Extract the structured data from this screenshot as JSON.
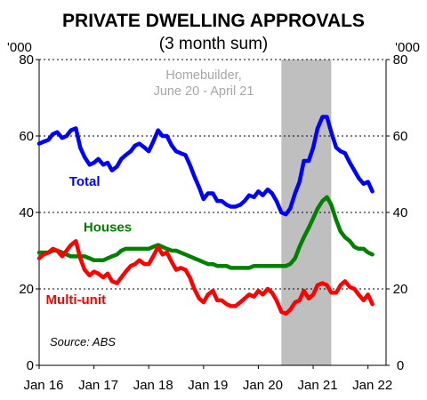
{
  "chart_data": {
    "type": "line",
    "title": "PRIVATE DWELLING APPROVALS",
    "subtitle": "(3 month sum)",
    "y_unit_left": "'000",
    "y_unit_right": "'000",
    "ylim": [
      0,
      80
    ],
    "yticks": [
      0,
      20,
      40,
      60,
      80
    ],
    "xlim": [
      2016.0,
      2022.33
    ],
    "xticks": [
      {
        "label": "Jan 16",
        "x": 2016.0
      },
      {
        "label": "Jan 17",
        "x": 2017.0
      },
      {
        "label": "Jan 18",
        "x": 2018.0
      },
      {
        "label": "Jan 19",
        "x": 2019.0
      },
      {
        "label": "Jan 20",
        "x": 2020.0
      },
      {
        "label": "Jan 21",
        "x": 2021.0
      },
      {
        "label": "Jan 22",
        "x": 2022.0
      }
    ],
    "shaded_region": {
      "x_start": 2020.42,
      "x_end": 2021.33,
      "label_line1": "Homebuilder,",
      "label_line2": "June 20 - April 21",
      "color": "#bfbfbf"
    },
    "source": "Source: ABS",
    "series": [
      {
        "name": "Total",
        "color": "#0000ff",
        "points": [
          [
            2016.0,
            58
          ],
          [
            2016.08,
            58.5
          ],
          [
            2016.17,
            59
          ],
          [
            2016.25,
            60.5
          ],
          [
            2016.33,
            61
          ],
          [
            2016.42,
            59.5
          ],
          [
            2016.5,
            60
          ],
          [
            2016.58,
            61.5
          ],
          [
            2016.67,
            62
          ],
          [
            2016.75,
            57
          ],
          [
            2016.83,
            54.5
          ],
          [
            2016.92,
            52.5
          ],
          [
            2017.0,
            53
          ],
          [
            2017.08,
            54
          ],
          [
            2017.17,
            52.5
          ],
          [
            2017.25,
            53
          ],
          [
            2017.33,
            51
          ],
          [
            2017.42,
            52
          ],
          [
            2017.5,
            54
          ],
          [
            2017.58,
            55
          ],
          [
            2017.67,
            56
          ],
          [
            2017.75,
            57.5
          ],
          [
            2017.83,
            58
          ],
          [
            2017.92,
            57
          ],
          [
            2018.0,
            56
          ],
          [
            2018.08,
            58.5
          ],
          [
            2018.17,
            61.5
          ],
          [
            2018.25,
            60
          ],
          [
            2018.33,
            60
          ],
          [
            2018.42,
            57.5
          ],
          [
            2018.5,
            56
          ],
          [
            2018.58,
            55.5
          ],
          [
            2018.67,
            55
          ],
          [
            2018.75,
            52.5
          ],
          [
            2018.83,
            49.5
          ],
          [
            2018.92,
            46.5
          ],
          [
            2019.0,
            43.5
          ],
          [
            2019.08,
            45
          ],
          [
            2019.17,
            45
          ],
          [
            2019.25,
            43
          ],
          [
            2019.33,
            43
          ],
          [
            2019.42,
            42
          ],
          [
            2019.5,
            41.5
          ],
          [
            2019.58,
            41.5
          ],
          [
            2019.67,
            42
          ],
          [
            2019.75,
            43
          ],
          [
            2019.83,
            44.5
          ],
          [
            2019.92,
            44
          ],
          [
            2020.0,
            45.5
          ],
          [
            2020.08,
            44.5
          ],
          [
            2020.17,
            46
          ],
          [
            2020.25,
            45
          ],
          [
            2020.33,
            43
          ],
          [
            2020.42,
            40
          ],
          [
            2020.5,
            39.5
          ],
          [
            2020.58,
            41
          ],
          [
            2020.67,
            45
          ],
          [
            2020.75,
            48
          ],
          [
            2020.83,
            53.5
          ],
          [
            2020.92,
            53.5
          ],
          [
            2021.0,
            57
          ],
          [
            2021.08,
            62
          ],
          [
            2021.17,
            65
          ],
          [
            2021.25,
            65
          ],
          [
            2021.33,
            61
          ],
          [
            2021.42,
            57
          ],
          [
            2021.5,
            56
          ],
          [
            2021.58,
            55.5
          ],
          [
            2021.67,
            53
          ],
          [
            2021.75,
            51
          ],
          [
            2021.83,
            49
          ],
          [
            2021.92,
            47.5
          ],
          [
            2022.0,
            48
          ],
          [
            2022.08,
            45.5
          ]
        ]
      },
      {
        "name": "Houses",
        "color": "#008000",
        "points": [
          [
            2016.0,
            29.5
          ],
          [
            2016.08,
            29.5
          ],
          [
            2016.17,
            29.5
          ],
          [
            2016.25,
            30
          ],
          [
            2016.33,
            30
          ],
          [
            2016.42,
            29.5
          ],
          [
            2016.5,
            29
          ],
          [
            2016.58,
            28.5
          ],
          [
            2016.67,
            28.5
          ],
          [
            2016.75,
            28.5
          ],
          [
            2016.83,
            28.5
          ],
          [
            2016.92,
            28
          ],
          [
            2017.0,
            27.5
          ],
          [
            2017.08,
            27.5
          ],
          [
            2017.17,
            27.5
          ],
          [
            2017.25,
            28
          ],
          [
            2017.33,
            28.5
          ],
          [
            2017.42,
            29
          ],
          [
            2017.5,
            30
          ],
          [
            2017.58,
            30.5
          ],
          [
            2017.67,
            30.5
          ],
          [
            2017.75,
            30.5
          ],
          [
            2017.83,
            30.5
          ],
          [
            2017.92,
            30.5
          ],
          [
            2018.0,
            30.5
          ],
          [
            2018.08,
            31
          ],
          [
            2018.17,
            31.5
          ],
          [
            2018.25,
            31
          ],
          [
            2018.33,
            30.5
          ],
          [
            2018.42,
            30
          ],
          [
            2018.5,
            30
          ],
          [
            2018.58,
            29.5
          ],
          [
            2018.67,
            29
          ],
          [
            2018.75,
            28.5
          ],
          [
            2018.83,
            28
          ],
          [
            2018.92,
            27.5
          ],
          [
            2019.0,
            27
          ],
          [
            2019.08,
            26.5
          ],
          [
            2019.17,
            26.5
          ],
          [
            2019.25,
            26
          ],
          [
            2019.33,
            26
          ],
          [
            2019.42,
            26
          ],
          [
            2019.5,
            25.5
          ],
          [
            2019.58,
            25.5
          ],
          [
            2019.67,
            25.5
          ],
          [
            2019.75,
            25.5
          ],
          [
            2019.83,
            25.5
          ],
          [
            2019.92,
            26
          ],
          [
            2020.0,
            26
          ],
          [
            2020.08,
            26
          ],
          [
            2020.17,
            26
          ],
          [
            2020.25,
            26
          ],
          [
            2020.33,
            26
          ],
          [
            2020.42,
            26
          ],
          [
            2020.5,
            26
          ],
          [
            2020.58,
            26.5
          ],
          [
            2020.67,
            28
          ],
          [
            2020.75,
            31
          ],
          [
            2020.83,
            33.5
          ],
          [
            2020.92,
            36
          ],
          [
            2021.0,
            38.5
          ],
          [
            2021.08,
            41
          ],
          [
            2021.17,
            43
          ],
          [
            2021.25,
            44
          ],
          [
            2021.33,
            42
          ],
          [
            2021.42,
            38
          ],
          [
            2021.5,
            35
          ],
          [
            2021.58,
            33.5
          ],
          [
            2021.67,
            32.5
          ],
          [
            2021.75,
            31
          ],
          [
            2021.83,
            30.5
          ],
          [
            2021.92,
            30.5
          ],
          [
            2022.0,
            29.5
          ],
          [
            2022.08,
            29
          ]
        ]
      },
      {
        "name": "Multi-unit",
        "color": "#ff0000",
        "points": [
          [
            2016.0,
            28
          ],
          [
            2016.08,
            29
          ],
          [
            2016.17,
            29.5
          ],
          [
            2016.25,
            30.5
          ],
          [
            2016.33,
            30
          ],
          [
            2016.42,
            28.5
          ],
          [
            2016.5,
            30
          ],
          [
            2016.58,
            31.5
          ],
          [
            2016.67,
            32.5
          ],
          [
            2016.75,
            28
          ],
          [
            2016.83,
            25
          ],
          [
            2016.92,
            23.5
          ],
          [
            2017.0,
            24.5
          ],
          [
            2017.08,
            24
          ],
          [
            2017.17,
            23
          ],
          [
            2017.25,
            24
          ],
          [
            2017.33,
            22
          ],
          [
            2017.42,
            21.5
          ],
          [
            2017.5,
            23
          ],
          [
            2017.58,
            24.5
          ],
          [
            2017.67,
            26
          ],
          [
            2017.75,
            26.5
          ],
          [
            2017.83,
            27.5
          ],
          [
            2017.92,
            26.5
          ],
          [
            2018.0,
            26.5
          ],
          [
            2018.08,
            28.5
          ],
          [
            2018.17,
            31
          ],
          [
            2018.25,
            29
          ],
          [
            2018.33,
            29.5
          ],
          [
            2018.42,
            27
          ],
          [
            2018.5,
            25
          ],
          [
            2018.58,
            25.5
          ],
          [
            2018.67,
            25
          ],
          [
            2018.75,
            23
          ],
          [
            2018.83,
            20
          ],
          [
            2018.92,
            17.5
          ],
          [
            2019.0,
            16.5
          ],
          [
            2019.08,
            18.5
          ],
          [
            2019.17,
            19.5
          ],
          [
            2019.25,
            17
          ],
          [
            2019.33,
            17
          ],
          [
            2019.42,
            16
          ],
          [
            2019.5,
            15.5
          ],
          [
            2019.58,
            15.5
          ],
          [
            2019.67,
            16.5
          ],
          [
            2019.75,
            17.5
          ],
          [
            2019.83,
            18.5
          ],
          [
            2019.92,
            18
          ],
          [
            2020.0,
            19.5
          ],
          [
            2020.08,
            18.5
          ],
          [
            2020.17,
            20
          ],
          [
            2020.25,
            19
          ],
          [
            2020.33,
            17
          ],
          [
            2020.42,
            14
          ],
          [
            2020.5,
            13.5
          ],
          [
            2020.58,
            14.5
          ],
          [
            2020.67,
            16.5
          ],
          [
            2020.75,
            17
          ],
          [
            2020.83,
            19.5
          ],
          [
            2020.92,
            17.5
          ],
          [
            2021.0,
            18.5
          ],
          [
            2021.08,
            21
          ],
          [
            2021.17,
            21.5
          ],
          [
            2021.25,
            21
          ],
          [
            2021.33,
            19
          ],
          [
            2021.42,
            19
          ],
          [
            2021.5,
            21
          ],
          [
            2021.58,
            22
          ],
          [
            2021.67,
            20.5
          ],
          [
            2021.75,
            20
          ],
          [
            2021.83,
            18.5
          ],
          [
            2021.92,
            17
          ],
          [
            2022.0,
            18.5
          ],
          [
            2022.08,
            16
          ]
        ]
      }
    ],
    "series_labels": [
      {
        "series": "Total",
        "text": "Total",
        "x": 2016.83,
        "y": 47
      },
      {
        "series": "Houses",
        "text": "Houses",
        "x": 2017.25,
        "y": 35
      },
      {
        "series": "Multi-unit",
        "text": "Multi-unit",
        "x": 2016.67,
        "y": 16
      }
    ]
  }
}
